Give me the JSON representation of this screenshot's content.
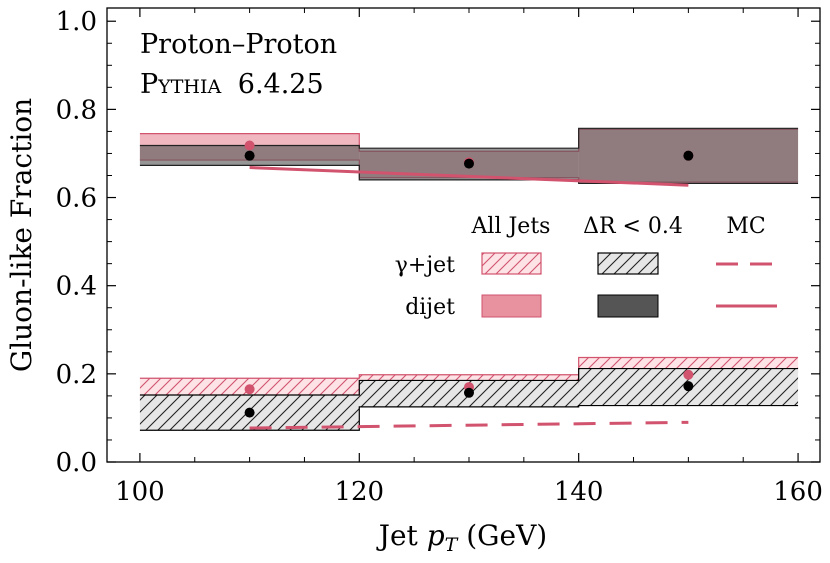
{
  "chart_data": {
    "type": "band",
    "annotation": {
      "line1": "Proton–Proton",
      "line2_caps": "Pythia",
      "line2_version": "6.4.25"
    },
    "xlabel": {
      "prefix": "Jet ",
      "var": "p",
      "sub": "T",
      "suffix": " (GeV)"
    },
    "ylabel": "Gluon-like Fraction",
    "xlim": [
      97,
      162
    ],
    "ylim": [
      0,
      1.03
    ],
    "xticks": [
      100,
      120,
      140,
      160
    ],
    "xtick_labels": [
      "100",
      "120",
      "140",
      "160"
    ],
    "yticks": [
      0.0,
      0.2,
      0.4,
      0.6,
      0.8,
      1.0
    ],
    "ytick_labels": [
      "0.0",
      "0.2",
      "0.4",
      "0.6",
      "0.8",
      "1.0"
    ],
    "bins": [
      [
        100,
        120
      ],
      [
        120,
        140
      ],
      [
        140,
        160
      ]
    ],
    "legend": {
      "columns": [
        "All Jets",
        "ΔR < 0.4",
        "MC"
      ],
      "rows": [
        "γ+jet",
        "dijet"
      ]
    },
    "series": [
      {
        "name": "dijet All Jets",
        "kind": "band",
        "style": "solid-pink",
        "low": [
          0.685,
          0.645,
          0.635
        ],
        "high": [
          0.745,
          0.705,
          0.755
        ],
        "point": [
          0.718,
          0.68,
          0.695
        ]
      },
      {
        "name": "dijet ΔR < 0.4",
        "kind": "band",
        "style": "solid-dark",
        "low": [
          0.673,
          0.64,
          0.632
        ],
        "high": [
          0.718,
          0.712,
          0.757
        ],
        "point": [
          0.695,
          0.677,
          0.695
        ]
      },
      {
        "name": "γ+jet All Jets",
        "kind": "band",
        "style": "hatch-pink",
        "low": [
          0.145,
          0.175,
          0.205
        ],
        "high": [
          0.19,
          0.198,
          0.237
        ],
        "point": [
          0.165,
          0.17,
          0.198
        ]
      },
      {
        "name": "γ+jet ΔR < 0.4",
        "kind": "band",
        "style": "hatch-dark",
        "low": [
          0.072,
          0.125,
          0.128
        ],
        "high": [
          0.152,
          0.185,
          0.212
        ],
        "point": [
          0.112,
          0.157,
          0.172
        ]
      },
      {
        "name": "dijet MC",
        "kind": "line",
        "style": "solid",
        "x": [
          110,
          150
        ],
        "y": [
          0.668,
          0.628
        ]
      },
      {
        "name": "γ+jet MC",
        "kind": "line",
        "style": "dashed",
        "x": [
          110,
          150
        ],
        "y": [
          0.077,
          0.09
        ]
      }
    ],
    "colors": {
      "pink": "#d1536e",
      "pink_fill": "#e8919f",
      "pink_light": "#fde3e6",
      "dark": "#555555",
      "mix": "#8e6a70",
      "gray_fill": "#e6e6e6",
      "axis": "#000000"
    }
  }
}
